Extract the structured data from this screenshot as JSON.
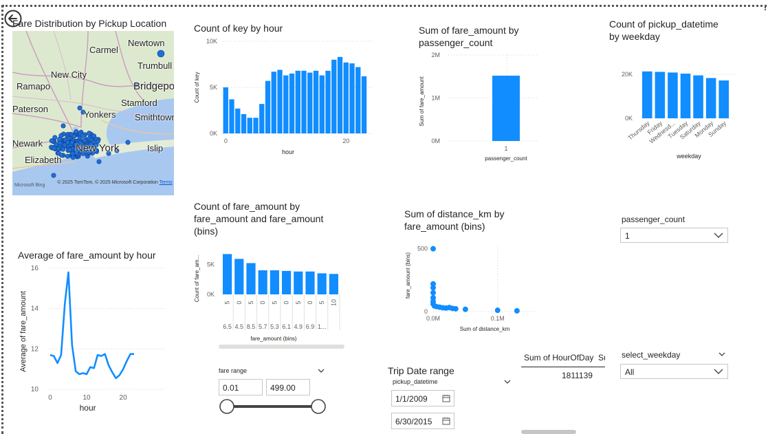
{
  "nav": {
    "back_icon": "back-arrow-icon"
  },
  "map": {
    "title": "Fare Distribution by Pickup Location",
    "labels": [
      "Carmel",
      "Newtown",
      "Trumbull",
      "New City",
      "Bridgepor",
      "Ramapo",
      "Stamford",
      "Paterson",
      "Yonkers",
      "Smithtown",
      "Newark",
      "New York",
      "Islip",
      "Elizabeth"
    ],
    "copyright": "© 2025 TomTom, © 2025 Microsoft Corporation",
    "terms": "Terms",
    "brand": "Microsoft Bing",
    "point_color": "#1f6fd6"
  },
  "charts": {
    "count_by_hour": {
      "type": "bar",
      "title": "Count of key by hour",
      "ylabel": "Count of key",
      "xlabel": "hour",
      "x": [
        0,
        1,
        2,
        3,
        4,
        5,
        6,
        7,
        8,
        9,
        10,
        11,
        12,
        13,
        14,
        15,
        16,
        17,
        18,
        19,
        20,
        21,
        22,
        23
      ],
      "values": [
        5000,
        3700,
        2700,
        2100,
        1700,
        1700,
        3200,
        5700,
        6700,
        6900,
        6300,
        6500,
        6800,
        6800,
        6600,
        6800,
        6300,
        6800,
        8000,
        8300,
        7700,
        7600,
        7200,
        6200
      ],
      "ylim": [
        0,
        10000
      ],
      "yticks": [
        "10K",
        "5K",
        "0K"
      ],
      "xticks": [
        "0",
        "20"
      ],
      "color": "#118dff"
    },
    "fare_by_passenger": {
      "type": "bar",
      "title_lines": [
        "Sum of fare_amount by",
        "passenger_count"
      ],
      "ylabel": "Sum of fare_amount",
      "xlabel": "passenger_count",
      "categories": [
        "1"
      ],
      "values": [
        1520000
      ],
      "ylim": [
        0,
        2000000
      ],
      "yticks": [
        "2M",
        "1M",
        "0M"
      ],
      "color": "#118dff"
    },
    "count_by_weekday": {
      "type": "bar",
      "title_lines": [
        "Count of pickup_datetime",
        "by weekday"
      ],
      "xlabel": "weekday",
      "categories": [
        "Thursday",
        "Friday",
        "Wednesd...",
        "Tuesday",
        "Saturday",
        "Monday",
        "Sunday"
      ],
      "values": [
        21300,
        21100,
        20800,
        20300,
        19500,
        18300,
        17200
      ],
      "ylim": [
        0,
        25000
      ],
      "yticks": [
        "20K",
        "0K"
      ],
      "color": "#118dff"
    },
    "avg_fare_by_hour": {
      "type": "line",
      "title": "Average of fare_amount by hour",
      "ylabel": "Average of fare_amount",
      "xlabel": "hour",
      "x": [
        0,
        1,
        2,
        3,
        4,
        5,
        6,
        7,
        8,
        9,
        10,
        11,
        12,
        13,
        14,
        15,
        16,
        17,
        18,
        19,
        20,
        21,
        22,
        23
      ],
      "values": [
        11.7,
        11.65,
        11.3,
        11.7,
        14.2,
        15.8,
        12.2,
        10.9,
        10.75,
        10.8,
        10.75,
        11.1,
        11.05,
        11.7,
        11.65,
        11.75,
        11.2,
        10.85,
        10.55,
        10.7,
        11.0,
        11.4,
        11.75,
        11.75
      ],
      "ylim": [
        10,
        16
      ],
      "yticks": [
        "16",
        "14",
        "12",
        "10"
      ],
      "xticks": [
        "0",
        "10",
        "20"
      ],
      "color": "#118dff"
    },
    "fare_bins_count": {
      "type": "bar",
      "title_lines": [
        "Count of fare_amount by",
        "fare_amount and fare_amount",
        "(bins)"
      ],
      "ylabel": "Count of fare_am...",
      "xlabel": "fare_amount (bins)",
      "categories": [
        "5",
        "0",
        "5",
        "0",
        "5",
        "0",
        "5",
        "0",
        "5",
        "10"
      ],
      "categories2": [
        "6.5",
        "4.5",
        "8.5",
        "5.7",
        "5.3",
        "6.1",
        "4.9",
        "6.9",
        "1..."
      ],
      "values": [
        6700,
        5900,
        5200,
        4000,
        4000,
        3900,
        3800,
        3800,
        3500,
        3400
      ],
      "ylim": [
        0,
        8000
      ],
      "yticks": [
        "5K",
        "0K"
      ],
      "color": "#118dff"
    },
    "distance_by_fare_bins": {
      "type": "scatter",
      "title_lines": [
        "Sum of distance_km by",
        "fare_amount (bins)"
      ],
      "ylabel": "fare_amount (bins)",
      "xlabel": "Sum of distance_km",
      "points": [
        {
          "x": 0.0,
          "y": 500
        },
        {
          "x": 0.0,
          "y": 220
        },
        {
          "x": 0.0,
          "y": 190
        },
        {
          "x": 0.0,
          "y": 150
        },
        {
          "x": 0.0,
          "y": 110
        },
        {
          "x": 0.0,
          "y": 80
        },
        {
          "x": 0.0,
          "y": 60
        },
        {
          "x": 0.002,
          "y": 45
        },
        {
          "x": 0.005,
          "y": 40
        },
        {
          "x": 0.01,
          "y": 35
        },
        {
          "x": 0.015,
          "y": 30
        },
        {
          "x": 0.02,
          "y": 28
        },
        {
          "x": 0.025,
          "y": 32
        },
        {
          "x": 0.03,
          "y": 25
        },
        {
          "x": 0.035,
          "y": 22
        },
        {
          "x": 0.05,
          "y": 18
        },
        {
          "x": 0.1,
          "y": 10
        },
        {
          "x": 0.13,
          "y": 6
        }
      ],
      "xlim": [
        0,
        0.16
      ],
      "ylim": [
        0,
        520
      ],
      "yticks": [
        "500",
        "0"
      ],
      "xticks": [
        "0.0M",
        "0.1M"
      ],
      "color": "#118dff"
    }
  },
  "slicers": {
    "fare_range": {
      "title": "fare range",
      "min": "0.01",
      "max": "499.00"
    },
    "trip_date": {
      "title": "Trip Date range",
      "field": "pickup_datetime",
      "start": "1/1/2009",
      "end": "6/30/2015"
    },
    "passenger_count": {
      "title": "passenger_count",
      "value": "1"
    },
    "select_weekday": {
      "title": "select_weekday",
      "value": "All"
    }
  },
  "card": {
    "header": "Sum of HourOfDay",
    "header_extra": "Su",
    "value": "1811139"
  }
}
